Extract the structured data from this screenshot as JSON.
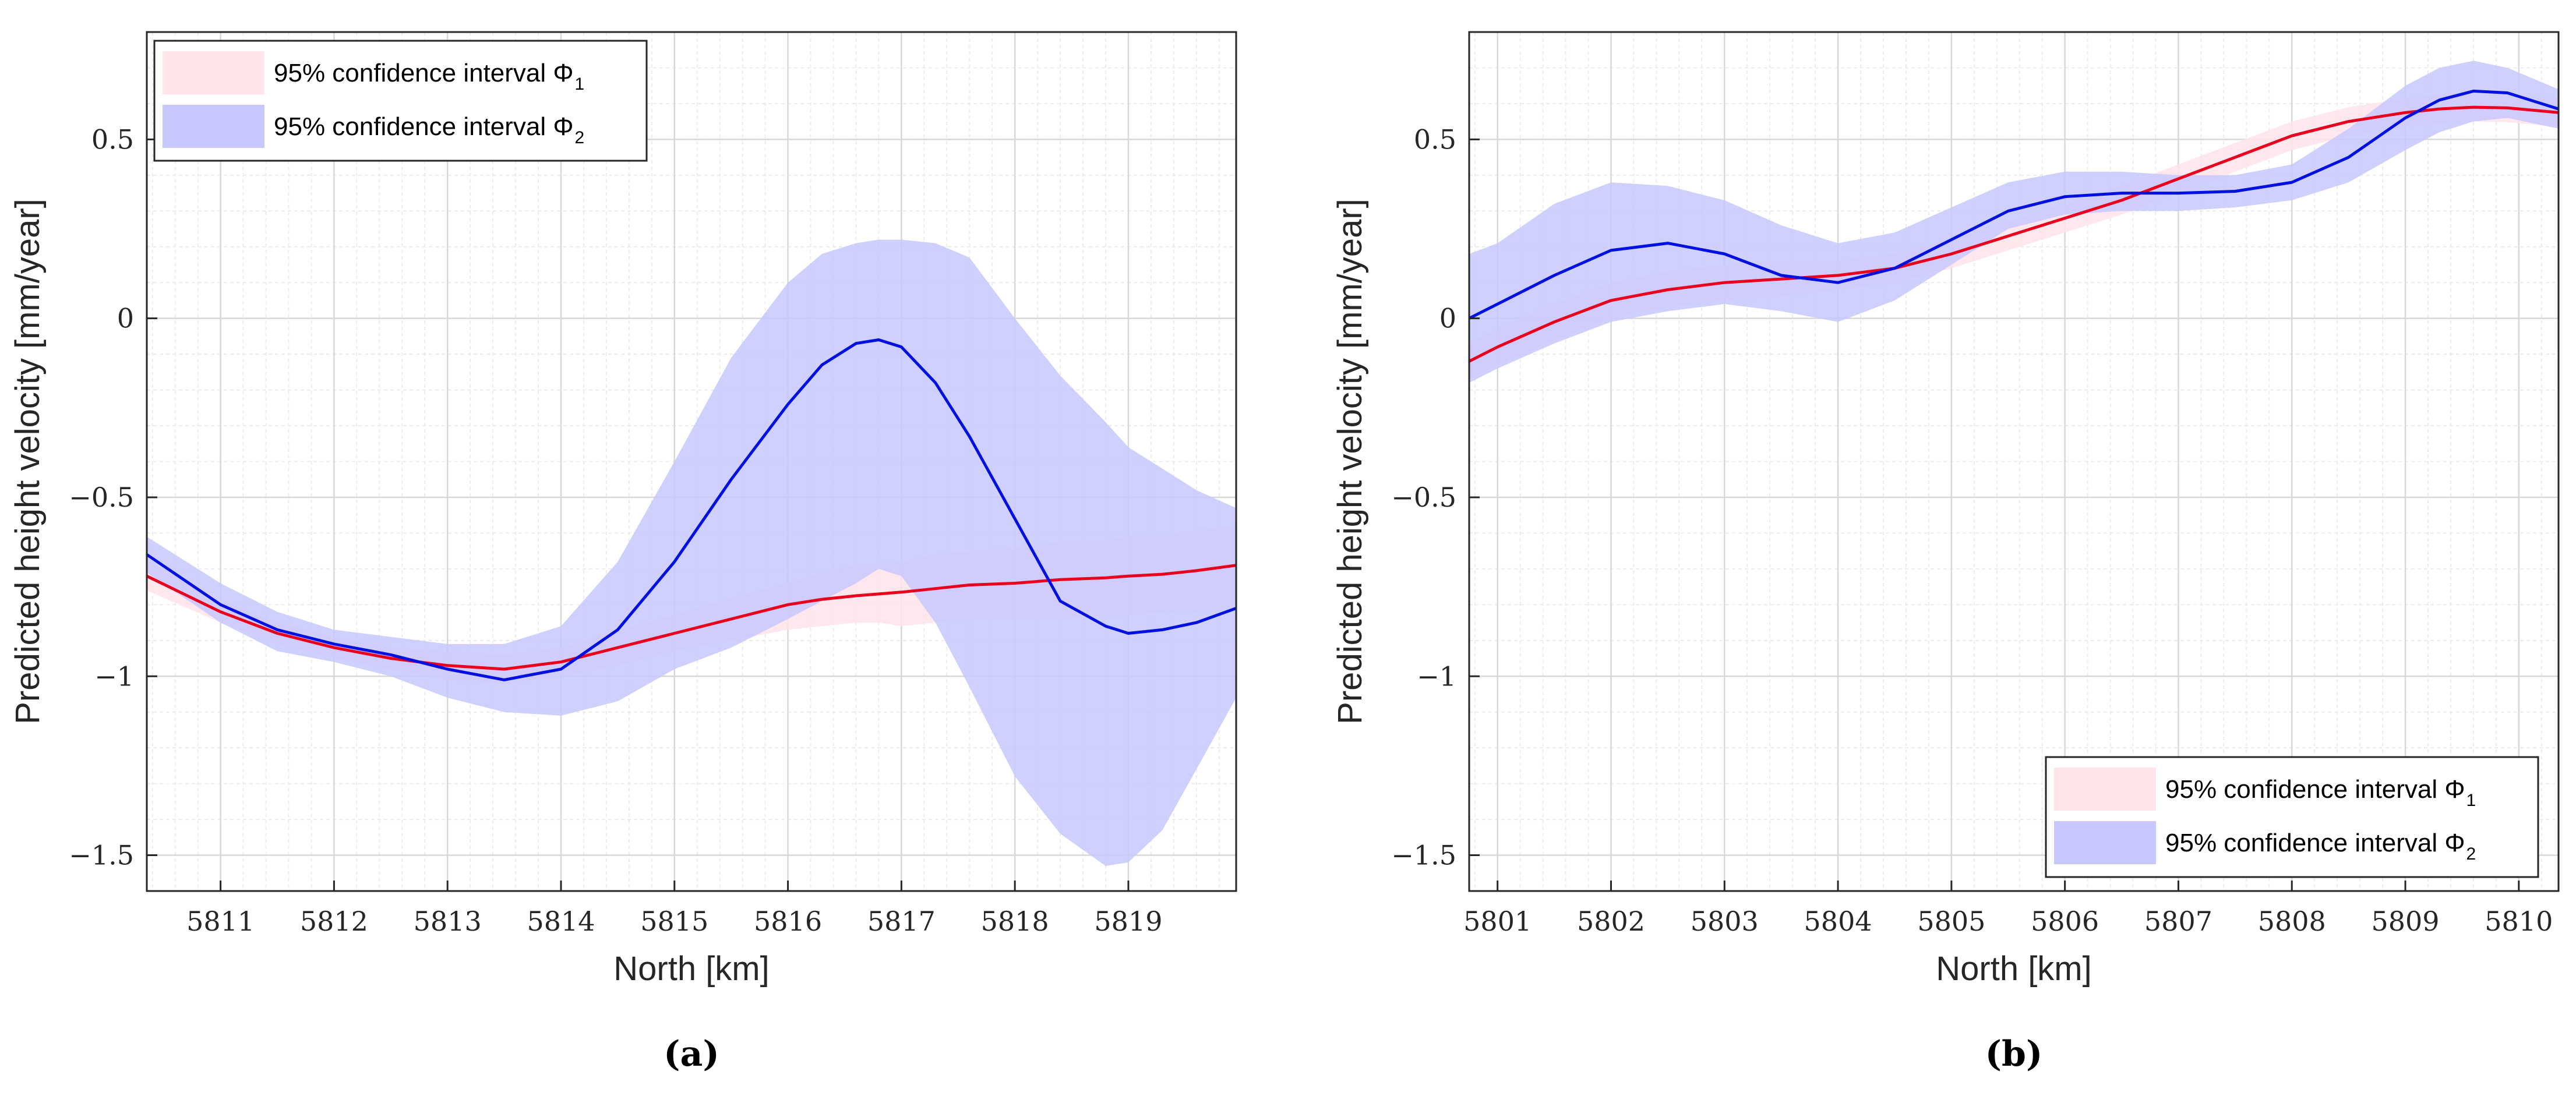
{
  "colors": {
    "phi1_fill": "#ffe4ea",
    "phi2_fill": "#c8c8ff",
    "phi1_line": "#e8001c",
    "phi2_line": "#0010e0",
    "grid_major": "#d8d8d8",
    "grid_minor": "#ececec",
    "axis": "#262626"
  },
  "chart_data": [
    {
      "type": "line",
      "panel": "a",
      "caption": "(a)",
      "xlabel": "North [km]",
      "ylabel": "Predicted height velocity [mm/year]",
      "xlim": [
        5810.35,
        5819.95
      ],
      "ylim": [
        -1.6,
        0.8
      ],
      "xticks": [
        5811,
        5812,
        5813,
        5814,
        5815,
        5816,
        5817,
        5818,
        5819
      ],
      "yticks": [
        -1.5,
        -1,
        -0.5,
        0,
        0.5
      ],
      "ytick_labels": [
        "−1.5",
        "−1",
        "−0.5",
        "0",
        "0.5"
      ],
      "grid": true,
      "legend_position": "top-left",
      "legend": [
        {
          "label": "95% confidence interval Φ",
          "sub": "1",
          "color": "#ffe4ea"
        },
        {
          "label": "95% confidence interval Φ",
          "sub": "2",
          "color": "#c8c8ff"
        }
      ],
      "x": [
        5810.35,
        5811.0,
        5811.5,
        5812.0,
        5812.5,
        5813.0,
        5813.5,
        5814.0,
        5814.5,
        5815.0,
        5815.5,
        5816.0,
        5816.3,
        5816.6,
        5816.8,
        5817.0,
        5817.3,
        5817.6,
        5818.0,
        5818.4,
        5818.8,
        5819.0,
        5819.3,
        5819.6,
        5819.95
      ],
      "series": [
        {
          "name": "Φ1 mean",
          "color": "#e8001c",
          "values": [
            -0.72,
            -0.82,
            -0.88,
            -0.92,
            -0.95,
            -0.97,
            -0.98,
            -0.96,
            -0.92,
            -0.88,
            -0.84,
            -0.8,
            -0.785,
            -0.775,
            -0.77,
            -0.765,
            -0.755,
            -0.745,
            -0.74,
            -0.73,
            -0.725,
            -0.72,
            -0.715,
            -0.705,
            -0.69
          ],
          "lower": [
            -0.76,
            -0.85,
            -0.91,
            -0.95,
            -0.98,
            -1.01,
            -1.02,
            -1.0,
            -0.97,
            -0.93,
            -0.9,
            -0.87,
            -0.86,
            -0.85,
            -0.85,
            -0.86,
            -0.85,
            -0.84,
            -0.84,
            -0.84,
            -0.83,
            -0.83,
            -0.82,
            -0.82,
            -0.81
          ],
          "upper": [
            -0.68,
            -0.79,
            -0.85,
            -0.89,
            -0.92,
            -0.93,
            -0.94,
            -0.92,
            -0.87,
            -0.83,
            -0.78,
            -0.74,
            -0.71,
            -0.69,
            -0.685,
            -0.68,
            -0.66,
            -0.65,
            -0.64,
            -0.625,
            -0.62,
            -0.61,
            -0.605,
            -0.595,
            -0.58
          ]
        },
        {
          "name": "Φ2 mean",
          "color": "#0010e0",
          "values": [
            -0.66,
            -0.8,
            -0.87,
            -0.91,
            -0.94,
            -0.98,
            -1.01,
            -0.98,
            -0.87,
            -0.68,
            -0.45,
            -0.24,
            -0.13,
            -0.07,
            -0.06,
            -0.08,
            -0.18,
            -0.33,
            -0.56,
            -0.79,
            -0.86,
            -0.88,
            -0.87,
            -0.85,
            -0.81
          ],
          "lower": [
            -0.71,
            -0.85,
            -0.93,
            -0.96,
            -1.0,
            -1.06,
            -1.1,
            -1.11,
            -1.07,
            -0.98,
            -0.92,
            -0.84,
            -0.79,
            -0.74,
            -0.7,
            -0.72,
            -0.85,
            -1.03,
            -1.28,
            -1.44,
            -1.53,
            -1.52,
            -1.43,
            -1.26,
            -1.06
          ],
          "upper": [
            -0.61,
            -0.74,
            -0.82,
            -0.87,
            -0.89,
            -0.91,
            -0.91,
            -0.86,
            -0.68,
            -0.4,
            -0.11,
            0.1,
            0.18,
            0.21,
            0.22,
            0.22,
            0.21,
            0.17,
            0.0,
            -0.16,
            -0.29,
            -0.36,
            -0.42,
            -0.48,
            -0.53
          ]
        }
      ]
    },
    {
      "type": "line",
      "panel": "b",
      "caption": "(b)",
      "xlabel": "North [km]",
      "ylabel": "Predicted height velocity [mm/year]",
      "xlim": [
        5800.75,
        5810.35
      ],
      "ylim": [
        -1.6,
        0.8
      ],
      "xticks": [
        5801,
        5802,
        5803,
        5804,
        5805,
        5806,
        5807,
        5808,
        5809,
        5810
      ],
      "yticks": [
        -1.5,
        -1,
        -0.5,
        0,
        0.5
      ],
      "ytick_labels": [
        "−1.5",
        "−1",
        "−0.5",
        "0",
        "0.5"
      ],
      "grid": true,
      "legend_position": "bottom-right",
      "legend": [
        {
          "label": "95% confidence interval Φ",
          "sub": "1",
          "color": "#ffe4ea"
        },
        {
          "label": "95% confidence interval Φ",
          "sub": "2",
          "color": "#c8c8ff"
        }
      ],
      "x": [
        5800.75,
        5801.0,
        5801.5,
        5802.0,
        5802.5,
        5803.0,
        5803.5,
        5804.0,
        5804.5,
        5805.0,
        5805.5,
        5806.0,
        5806.5,
        5807.0,
        5807.5,
        5808.0,
        5808.5,
        5809.0,
        5809.3,
        5809.6,
        5809.9,
        5810.35
      ],
      "series": [
        {
          "name": "Φ1 mean",
          "color": "#e8001c",
          "values": [
            -0.12,
            -0.08,
            -0.01,
            0.05,
            0.08,
            0.1,
            0.11,
            0.12,
            0.14,
            0.18,
            0.23,
            0.28,
            0.33,
            0.39,
            0.45,
            0.51,
            0.55,
            0.575,
            0.585,
            0.59,
            0.588,
            0.575
          ],
          "lower": [
            -0.17,
            -0.13,
            -0.06,
            0.0,
            0.03,
            0.05,
            0.06,
            0.08,
            0.1,
            0.14,
            0.19,
            0.24,
            0.29,
            0.35,
            0.41,
            0.47,
            0.51,
            0.535,
            0.545,
            0.55,
            0.548,
            0.535
          ],
          "upper": [
            -0.07,
            -0.03,
            0.04,
            0.1,
            0.13,
            0.15,
            0.16,
            0.16,
            0.18,
            0.22,
            0.27,
            0.32,
            0.37,
            0.43,
            0.49,
            0.55,
            0.59,
            0.615,
            0.625,
            0.63,
            0.628,
            0.615
          ]
        },
        {
          "name": "Φ2 mean",
          "color": "#0010e0",
          "values": [
            0.0,
            0.04,
            0.12,
            0.19,
            0.21,
            0.18,
            0.12,
            0.1,
            0.14,
            0.22,
            0.3,
            0.34,
            0.35,
            0.35,
            0.355,
            0.38,
            0.45,
            0.56,
            0.61,
            0.635,
            0.63,
            0.585
          ],
          "lower": [
            -0.18,
            -0.14,
            -0.07,
            -0.01,
            0.02,
            0.04,
            0.02,
            -0.01,
            0.05,
            0.15,
            0.25,
            0.29,
            0.3,
            0.3,
            0.31,
            0.33,
            0.38,
            0.47,
            0.52,
            0.55,
            0.56,
            0.53
          ],
          "upper": [
            0.18,
            0.21,
            0.32,
            0.38,
            0.37,
            0.33,
            0.26,
            0.21,
            0.24,
            0.31,
            0.38,
            0.41,
            0.41,
            0.4,
            0.4,
            0.43,
            0.53,
            0.65,
            0.7,
            0.72,
            0.7,
            0.64
          ]
        }
      ]
    }
  ]
}
